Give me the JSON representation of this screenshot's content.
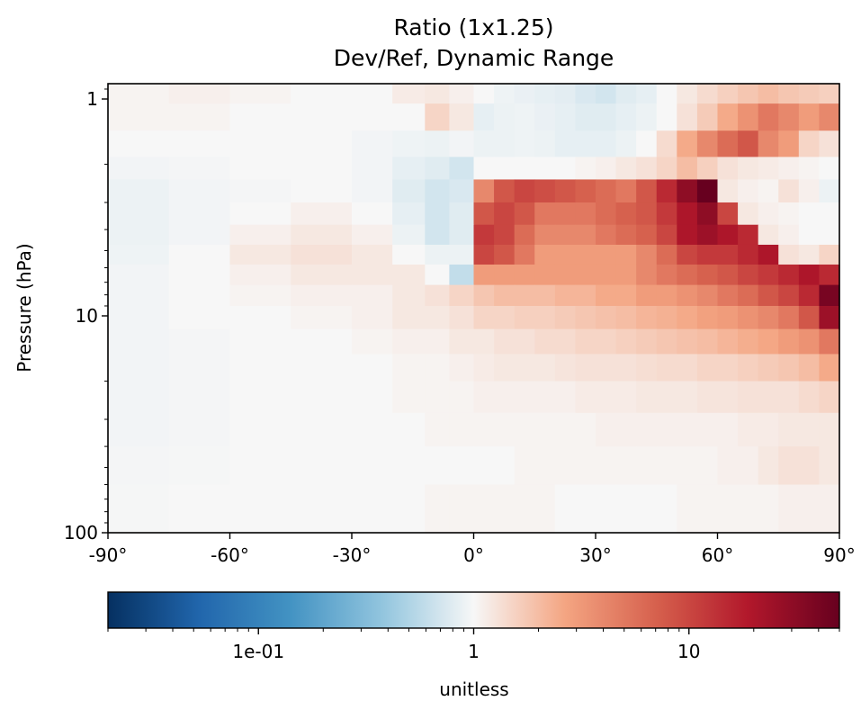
{
  "chart_data": {
    "type": "heatmap",
    "title": "Ratio (1x1.25)",
    "subtitle": "Dev/Ref, Dynamic Range",
    "xlabel": "",
    "ylabel": "Pressure (hPa)",
    "xlim": [
      -90,
      90
    ],
    "ylim": [
      100,
      0.85
    ],
    "y_scale": "log",
    "x_ticks": [
      {
        "value": -90,
        "label": "-90°"
      },
      {
        "value": -60,
        "label": "-60°"
      },
      {
        "value": -30,
        "label": "-30°"
      },
      {
        "value": 0,
        "label": "0°"
      },
      {
        "value": 30,
        "label": "30°"
      },
      {
        "value": 60,
        "label": "60°"
      },
      {
        "value": 90,
        "label": "90°"
      }
    ],
    "y_ticks": [
      {
        "value": 1,
        "label": "1"
      },
      {
        "value": 10,
        "label": "10"
      },
      {
        "value": 100,
        "label": "100"
      }
    ],
    "colorbar": {
      "label": "unitless",
      "scale": "log",
      "min": 0.02,
      "max": 50,
      "colormap": "RdBu_r",
      "ticks": [
        {
          "value": 0.1,
          "label": "1e-01"
        },
        {
          "value": 1,
          "label": "1"
        },
        {
          "value": 10,
          "label": "10"
        }
      ]
    },
    "lat_bands": [
      -90,
      -75,
      -60,
      -45,
      -30,
      -20,
      -12,
      -6,
      0,
      5,
      10,
      15,
      20,
      25,
      30,
      35,
      40,
      45,
      50,
      55,
      60,
      65,
      70,
      75,
      80,
      85,
      90
    ],
    "pressure_levels": [
      0.85,
      1.05,
      1.4,
      1.85,
      2.35,
      3.0,
      3.8,
      4.7,
      5.8,
      7.2,
      9.0,
      11.5,
      15.0,
      20.0,
      28.0,
      40.0,
      60.0,
      100.0
    ],
    "ratio_values": [
      [
        1.05,
        1.1,
        1.05,
        1.0,
        1.0,
        1.15,
        1.2,
        1.1,
        1.0,
        0.92,
        0.88,
        0.85,
        0.82,
        0.75,
        0.7,
        0.8,
        0.85,
        1.0,
        1.2,
        1.4,
        1.6,
        1.8,
        2.0,
        1.8,
        1.7,
        1.6
      ],
      [
        1.05,
        1.05,
        1.0,
        1.0,
        1.0,
        1.0,
        1.5,
        1.2,
        0.85,
        0.9,
        0.92,
        0.88,
        0.85,
        0.8,
        0.8,
        0.85,
        0.9,
        1.0,
        1.3,
        1.7,
        2.5,
        3.5,
        5.0,
        4.0,
        3.0,
        4.0
      ],
      [
        1.0,
        1.0,
        1.0,
        1.0,
        0.95,
        0.92,
        0.9,
        0.95,
        0.9,
        0.9,
        0.92,
        0.9,
        0.85,
        0.85,
        0.85,
        0.9,
        1.0,
        1.4,
        2.5,
        4.0,
        6.0,
        8.0,
        4.0,
        3.0,
        1.5,
        1.3
      ],
      [
        0.95,
        0.97,
        1.0,
        1.0,
        0.95,
        0.85,
        0.8,
        0.7,
        1.0,
        1.0,
        1.0,
        1.0,
        1.0,
        1.05,
        1.1,
        1.2,
        1.3,
        1.5,
        2.0,
        1.6,
        1.3,
        1.2,
        1.15,
        1.1,
        1.05,
        1.0
      ],
      [
        0.9,
        0.95,
        0.97,
        1.0,
        0.95,
        0.8,
        0.7,
        0.75,
        4.0,
        8.0,
        10.0,
        9.0,
        8.0,
        7.0,
        6.0,
        5.0,
        8.0,
        15.0,
        30.0,
        50.0,
        1.2,
        1.1,
        1.05,
        1.3,
        1.1,
        0.9
      ],
      [
        0.9,
        0.95,
        1.0,
        1.1,
        1.0,
        0.85,
        0.7,
        0.8,
        8.0,
        10.0,
        8.0,
        5.0,
        5.0,
        5.0,
        6.0,
        7.0,
        8.0,
        12.0,
        20.0,
        30.0,
        10.0,
        1.2,
        1.1,
        1.05,
        1.0,
        1.0
      ],
      [
        0.9,
        0.95,
        1.1,
        1.2,
        1.1,
        0.9,
        0.7,
        0.8,
        12.0,
        10.0,
        6.0,
        4.0,
        4.0,
        4.0,
        5.0,
        6.0,
        7.0,
        10.0,
        20.0,
        25.0,
        20.0,
        15.0,
        1.2,
        1.1,
        1.0,
        1.0
      ],
      [
        0.92,
        1.0,
        1.2,
        1.3,
        1.2,
        1.0,
        0.9,
        0.9,
        10.0,
        8.0,
        5.0,
        3.0,
        3.0,
        3.0,
        3.0,
        3.0,
        4.0,
        6.0,
        10.0,
        12.0,
        12.0,
        15.0,
        20.0,
        1.3,
        1.2,
        1.5
      ],
      [
        0.95,
        1.0,
        1.1,
        1.2,
        1.2,
        1.2,
        1.0,
        0.6,
        3.0,
        3.0,
        3.0,
        3.0,
        3.0,
        3.0,
        3.0,
        3.0,
        4.0,
        5.0,
        6.0,
        7.0,
        8.0,
        10.0,
        12.0,
        15.0,
        20.0,
        15.0
      ],
      [
        0.95,
        1.0,
        1.05,
        1.1,
        1.1,
        1.2,
        1.3,
        1.5,
        1.8,
        2.0,
        2.0,
        2.0,
        2.2,
        2.2,
        2.5,
        2.5,
        3.0,
        3.0,
        3.5,
        4.0,
        5.0,
        6.0,
        8.0,
        10.0,
        15.0,
        40.0
      ],
      [
        0.95,
        1.0,
        1.0,
        1.05,
        1.1,
        1.2,
        1.2,
        1.3,
        1.5,
        1.5,
        1.6,
        1.6,
        1.7,
        1.8,
        1.9,
        2.0,
        2.2,
        2.3,
        2.5,
        2.8,
        3.0,
        3.5,
        4.0,
        5.0,
        8.0,
        25.0
      ],
      [
        0.95,
        0.97,
        1.0,
        1.0,
        1.05,
        1.1,
        1.1,
        1.2,
        1.2,
        1.3,
        1.3,
        1.4,
        1.4,
        1.5,
        1.5,
        1.6,
        1.7,
        1.8,
        1.9,
        2.0,
        2.2,
        2.4,
        2.6,
        3.0,
        3.5,
        5.0
      ],
      [
        0.95,
        0.97,
        1.0,
        1.0,
        1.0,
        1.05,
        1.05,
        1.1,
        1.15,
        1.2,
        1.2,
        1.2,
        1.25,
        1.3,
        1.3,
        1.3,
        1.35,
        1.4,
        1.4,
        1.5,
        1.5,
        1.6,
        1.7,
        1.8,
        2.0,
        2.5
      ],
      [
        0.95,
        0.97,
        1.0,
        1.0,
        1.0,
        1.05,
        1.05,
        1.05,
        1.1,
        1.1,
        1.1,
        1.1,
        1.1,
        1.15,
        1.15,
        1.15,
        1.2,
        1.2,
        1.2,
        1.25,
        1.25,
        1.3,
        1.3,
        1.3,
        1.4,
        1.5
      ],
      [
        0.95,
        0.97,
        1.0,
        1.0,
        1.0,
        1.0,
        1.05,
        1.05,
        1.05,
        1.05,
        1.05,
        1.05,
        1.05,
        1.05,
        1.1,
        1.1,
        1.1,
        1.1,
        1.1,
        1.1,
        1.1,
        1.15,
        1.15,
        1.2,
        1.2,
        1.2
      ],
      [
        0.97,
        0.98,
        1.0,
        1.0,
        1.0,
        1.0,
        1.0,
        1.0,
        1.0,
        1.0,
        1.05,
        1.05,
        1.05,
        1.05,
        1.05,
        1.05,
        1.05,
        1.05,
        1.05,
        1.05,
        1.1,
        1.1,
        1.2,
        1.3,
        1.3,
        1.2
      ],
      [
        0.98,
        1.0,
        1.0,
        1.0,
        1.0,
        1.0,
        1.05,
        1.05,
        1.05,
        1.05,
        1.05,
        1.05,
        1.0,
        1.0,
        1.0,
        1.0,
        1.0,
        1.0,
        1.05,
        1.05,
        1.05,
        1.05,
        1.05,
        1.1,
        1.1,
        1.1
      ]
    ]
  }
}
